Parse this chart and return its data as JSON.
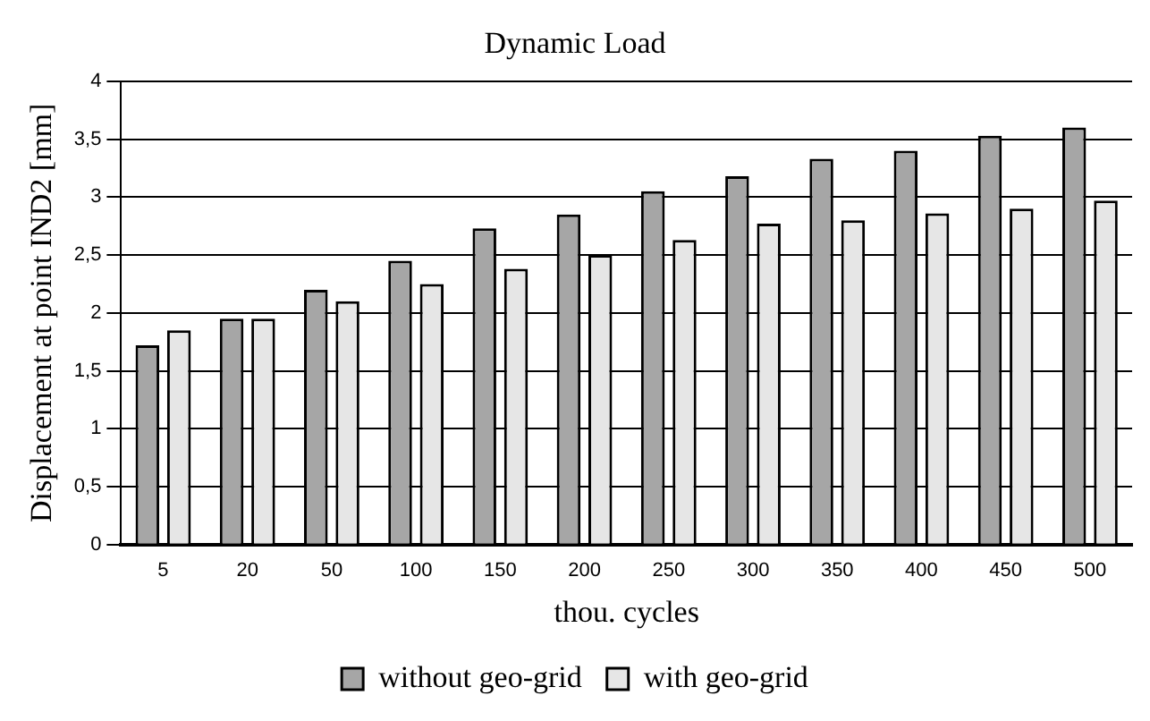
{
  "chart_data": {
    "type": "bar",
    "title": "Dynamic Load",
    "xlabel": "thou. cycles",
    "ylabel": "Displacement at point IND2 [mm]",
    "categories": [
      "5",
      "20",
      "50",
      "100",
      "150",
      "200",
      "250",
      "300",
      "350",
      "400",
      "450",
      "500"
    ],
    "series": [
      {
        "name": "without geo-grid",
        "color": "#a6a6a6",
        "values": [
          1.72,
          1.95,
          2.2,
          2.45,
          2.73,
          2.85,
          3.05,
          3.18,
          3.33,
          3.4,
          3.53,
          3.6
        ]
      },
      {
        "name": "with geo-grid",
        "color": "#e6e6e6",
        "values": [
          1.85,
          1.95,
          2.1,
          2.25,
          2.38,
          2.5,
          2.63,
          2.77,
          2.8,
          2.86,
          2.9,
          2.97
        ]
      }
    ],
    "ylim": [
      0,
      4
    ],
    "yticks": [
      0,
      {
        "value": 0.5,
        "label": "0,5"
      },
      1,
      {
        "value": 1.5,
        "label": "1,5"
      },
      2,
      {
        "value": 2.5,
        "label": "2,5"
      },
      3,
      {
        "value": 3.5,
        "label": "3,5"
      },
      4
    ],
    "grid": "y",
    "legend": "bottom"
  }
}
